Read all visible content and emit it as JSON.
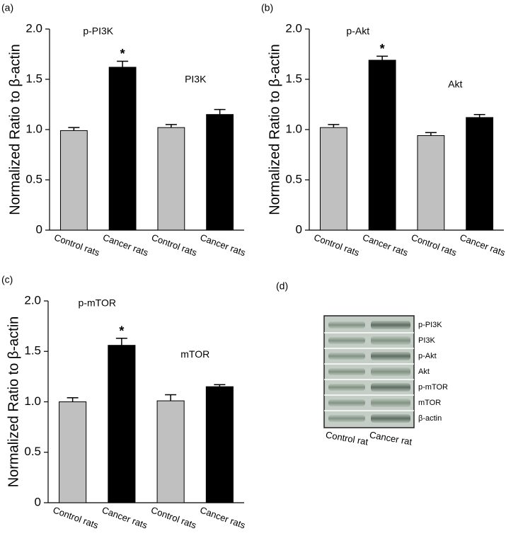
{
  "chart_data": [
    {
      "type": "bar",
      "panel_label": "(a)",
      "ylabel": "Normalized Ratio to β-actin",
      "categories": [
        "Control rats",
        "Cancer rats",
        "Control rats",
        "Cancer rats"
      ],
      "values": [
        0.99,
        1.62,
        1.02,
        1.15
      ],
      "errors": [
        0.03,
        0.06,
        0.03,
        0.05
      ],
      "colors": [
        "#c0c0c0",
        "#000000",
        "#c0c0c0",
        "#000000"
      ],
      "group_labels": [
        "p-PI3K",
        "PI3K"
      ],
      "significance": [
        null,
        "*",
        null,
        null
      ],
      "ylim": [
        0,
        2
      ],
      "yticks": [
        0,
        0.5,
        {
          "value": 1,
          "label": "1.0"
        },
        1.5,
        {
          "value": 2,
          "label": "2.0"
        }
      ]
    },
    {
      "type": "bar",
      "panel_label": "(b)",
      "ylabel": "Normalized Ratio to β-actin",
      "categories": [
        "Control rats",
        "Cancer rats",
        "Control rats",
        "Cancer rats"
      ],
      "values": [
        1.02,
        1.69,
        0.94,
        1.12
      ],
      "errors": [
        0.03,
        0.04,
        0.03,
        0.03
      ],
      "colors": [
        "#c0c0c0",
        "#000000",
        "#c0c0c0",
        "#000000"
      ],
      "group_labels": [
        "p-Akt",
        "Akt"
      ],
      "significance": [
        null,
        "*",
        null,
        null
      ],
      "ylim": [
        0,
        2
      ],
      "yticks": [
        0,
        0.5,
        {
          "value": 1,
          "label": "1.0"
        },
        1.5,
        {
          "value": 2,
          "label": "2.0"
        }
      ]
    },
    {
      "type": "bar",
      "panel_label": "(c)",
      "ylabel": "Normalized Ratio to β-actin",
      "categories": [
        "Control rats",
        "Cancer rats",
        "Control rats",
        "Cancer rats"
      ],
      "values": [
        1.0,
        1.56,
        1.01,
        1.15
      ],
      "errors": [
        0.04,
        0.07,
        0.06,
        0.02
      ],
      "colors": [
        "#c0c0c0",
        "#000000",
        "#c0c0c0",
        "#000000"
      ],
      "group_labels": [
        "p-mTOR",
        "mTOR"
      ],
      "significance": [
        null,
        "*",
        null,
        null
      ],
      "ylim": [
        0,
        2
      ],
      "yticks": [
        0,
        0.5,
        {
          "value": 1,
          "label": "1.0"
        },
        1.5,
        {
          "value": 2,
          "label": "2.0"
        }
      ]
    }
  ],
  "blot": {
    "panel_label": "(d)",
    "proteins": [
      "p-PI3K",
      "PI3K",
      "p-Akt",
      "Akt",
      "p-mTOR",
      "mTOR",
      "β-actin"
    ],
    "lanes": [
      "Control rat",
      "Cancer rat"
    ]
  }
}
